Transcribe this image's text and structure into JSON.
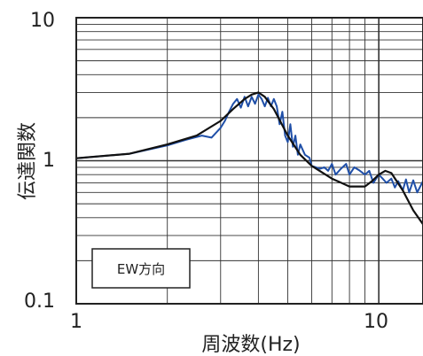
{
  "chart_data": {
    "type": "line",
    "x_scale": "log",
    "y_scale": "log",
    "xlim": [
      1,
      14
    ],
    "ylim": [
      0.1,
      10
    ],
    "grid": true,
    "xlabel": "周波数(Hz)",
    "ylabel": "伝達関数",
    "x_ticks": [
      "1",
      "10"
    ],
    "y_ticks": [
      "0.1",
      "1",
      "10"
    ],
    "annotation": "EW方向",
    "series": [
      {
        "color": "#1f4fa8",
        "x": [
          1.0,
          1.5,
          2.0,
          2.3,
          2.6,
          2.8,
          3.0,
          3.1,
          3.2,
          3.3,
          3.4,
          3.5,
          3.6,
          3.7,
          3.8,
          3.9,
          4.0,
          4.1,
          4.2,
          4.3,
          4.4,
          4.5,
          4.6,
          4.7,
          4.8,
          4.9,
          5.0,
          5.1,
          5.2,
          5.3,
          5.4,
          5.5,
          5.7,
          5.9,
          6.0,
          6.2,
          6.4,
          6.6,
          6.8,
          7.0,
          7.2,
          7.5,
          7.8,
          8.0,
          8.3,
          8.6,
          9.0,
          9.3,
          9.6,
          10.0,
          10.3,
          10.6,
          11.0,
          11.3,
          11.6,
          12.0,
          12.3,
          12.6,
          13.0,
          13.4,
          14.0
        ],
        "y": [
          1.04,
          1.12,
          1.28,
          1.4,
          1.5,
          1.45,
          1.7,
          1.9,
          2.2,
          2.5,
          2.7,
          2.35,
          2.8,
          2.4,
          2.8,
          2.5,
          2.9,
          2.7,
          2.4,
          2.75,
          2.4,
          2.7,
          2.4,
          1.8,
          2.2,
          1.5,
          1.35,
          1.8,
          1.25,
          1.5,
          1.1,
          1.3,
          1.1,
          1.05,
          0.92,
          0.9,
          0.88,
          0.9,
          0.85,
          0.95,
          0.8,
          0.88,
          0.95,
          0.8,
          0.9,
          0.86,
          0.8,
          0.85,
          0.7,
          0.8,
          0.75,
          0.7,
          0.75,
          0.65,
          0.72,
          0.62,
          0.74,
          0.6,
          0.73,
          0.6,
          0.72
        ]
      },
      {
        "color": "#111111",
        "x": [
          1.0,
          1.5,
          2.0,
          2.5,
          3.0,
          3.3,
          3.6,
          3.8,
          4.0,
          4.2,
          4.5,
          5.0,
          5.5,
          6.0,
          7.0,
          8.0,
          9.0,
          9.5,
          10.0,
          10.5,
          11.0,
          12.0,
          13.0,
          14.0
        ],
        "y": [
          1.04,
          1.12,
          1.3,
          1.5,
          1.9,
          2.3,
          2.7,
          2.9,
          3.0,
          2.8,
          2.3,
          1.5,
          1.1,
          0.92,
          0.75,
          0.66,
          0.66,
          0.72,
          0.8,
          0.85,
          0.82,
          0.62,
          0.45,
          0.36
        ]
      }
    ]
  }
}
